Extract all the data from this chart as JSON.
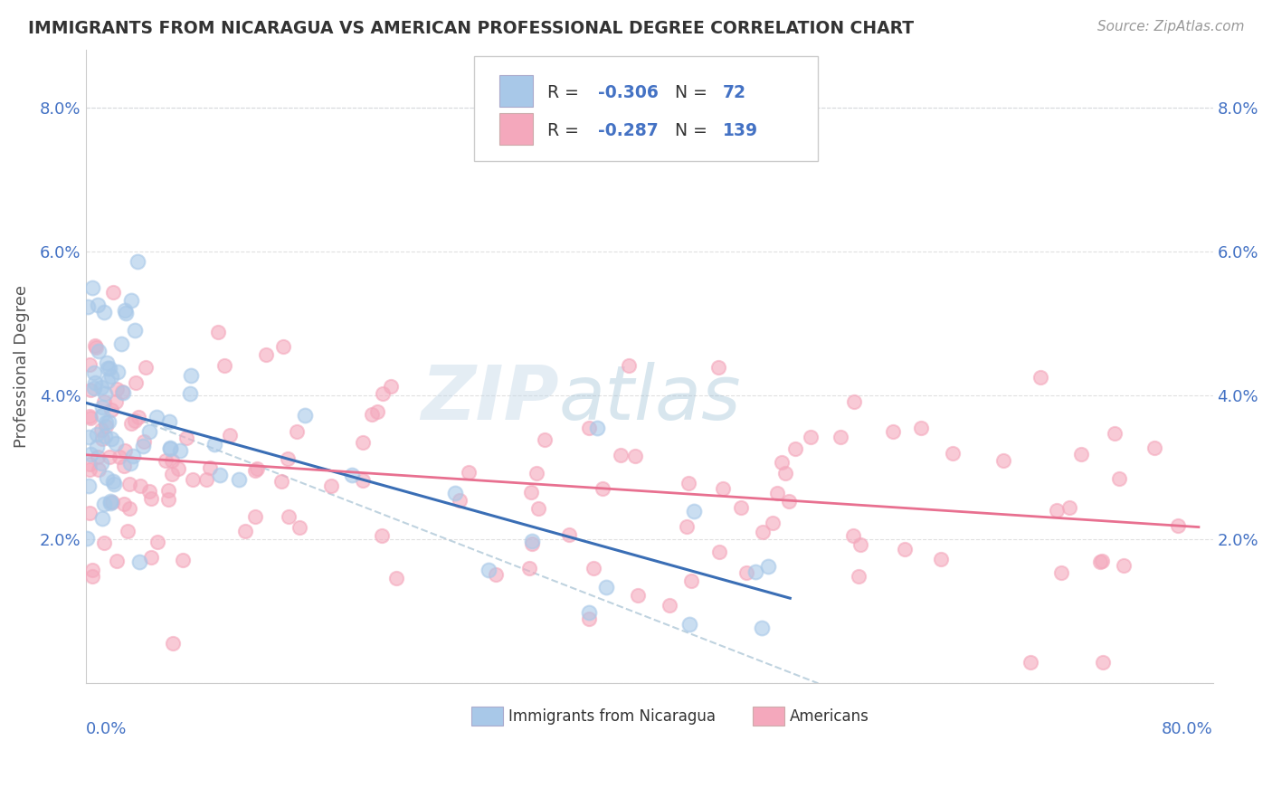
{
  "title": "IMMIGRANTS FROM NICARAGUA VS AMERICAN PROFESSIONAL DEGREE CORRELATION CHART",
  "source": "Source: ZipAtlas.com",
  "ylabel": "Professional Degree",
  "legend_blue_R": "-0.306",
  "legend_blue_N": "72",
  "legend_pink_R": "-0.287",
  "legend_pink_N": "139",
  "blue_scatter_color": "#a8c8e8",
  "pink_scatter_color": "#f4a8bc",
  "blue_line_color": "#3a6eb5",
  "pink_line_color": "#e87090",
  "dashed_line_color": "#b0c8d8",
  "watermark_color": "#c8d8e8",
  "xlim": [
    0.0,
    0.8
  ],
  "ylim": [
    0.0,
    0.088
  ],
  "ytick_vals": [
    0.0,
    0.02,
    0.04,
    0.06,
    0.08
  ],
  "ytick_labels": [
    "",
    "2.0%",
    "4.0%",
    "6.0%",
    "8.0%"
  ],
  "axis_label_color": "#4472c4",
  "background_color": "#ffffff",
  "grid_color": "#dddddd",
  "title_color": "#333333",
  "source_color": "#999999",
  "legend_text_color": "#333333",
  "legend_value_color": "#4472c4"
}
